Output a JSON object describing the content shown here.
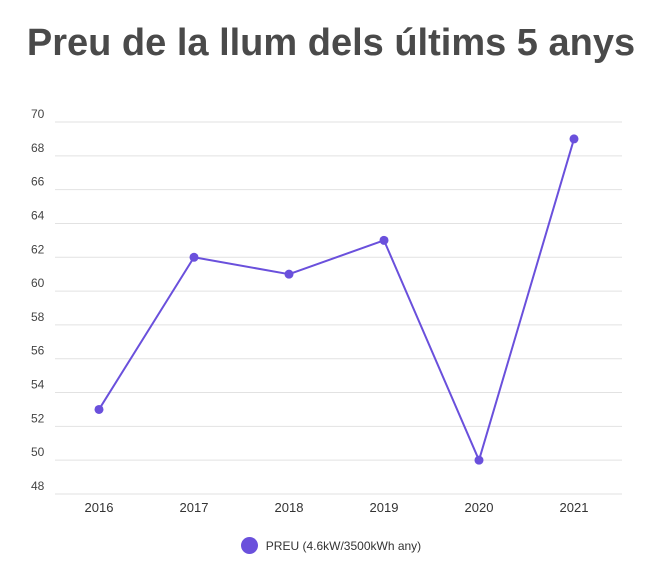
{
  "chart_data": {
    "type": "line",
    "title": "Preu de la llum dels últims 5 anys",
    "xlabel": "",
    "ylabel": "",
    "categories": [
      "2016",
      "2017",
      "2018",
      "2019",
      "2020",
      "2021"
    ],
    "series": [
      {
        "name": "PREU (4.6kW/3500kWh any)",
        "values": [
          53,
          62,
          61,
          63,
          50,
          69
        ],
        "color": "#6a50dc"
      }
    ],
    "ylim": [
      48,
      70
    ],
    "yticks": [
      "48",
      "50",
      "52",
      "54",
      "56",
      "58",
      "60",
      "62",
      "64",
      "66",
      "68",
      "70"
    ],
    "grid": true,
    "legend_position": "bottom"
  }
}
